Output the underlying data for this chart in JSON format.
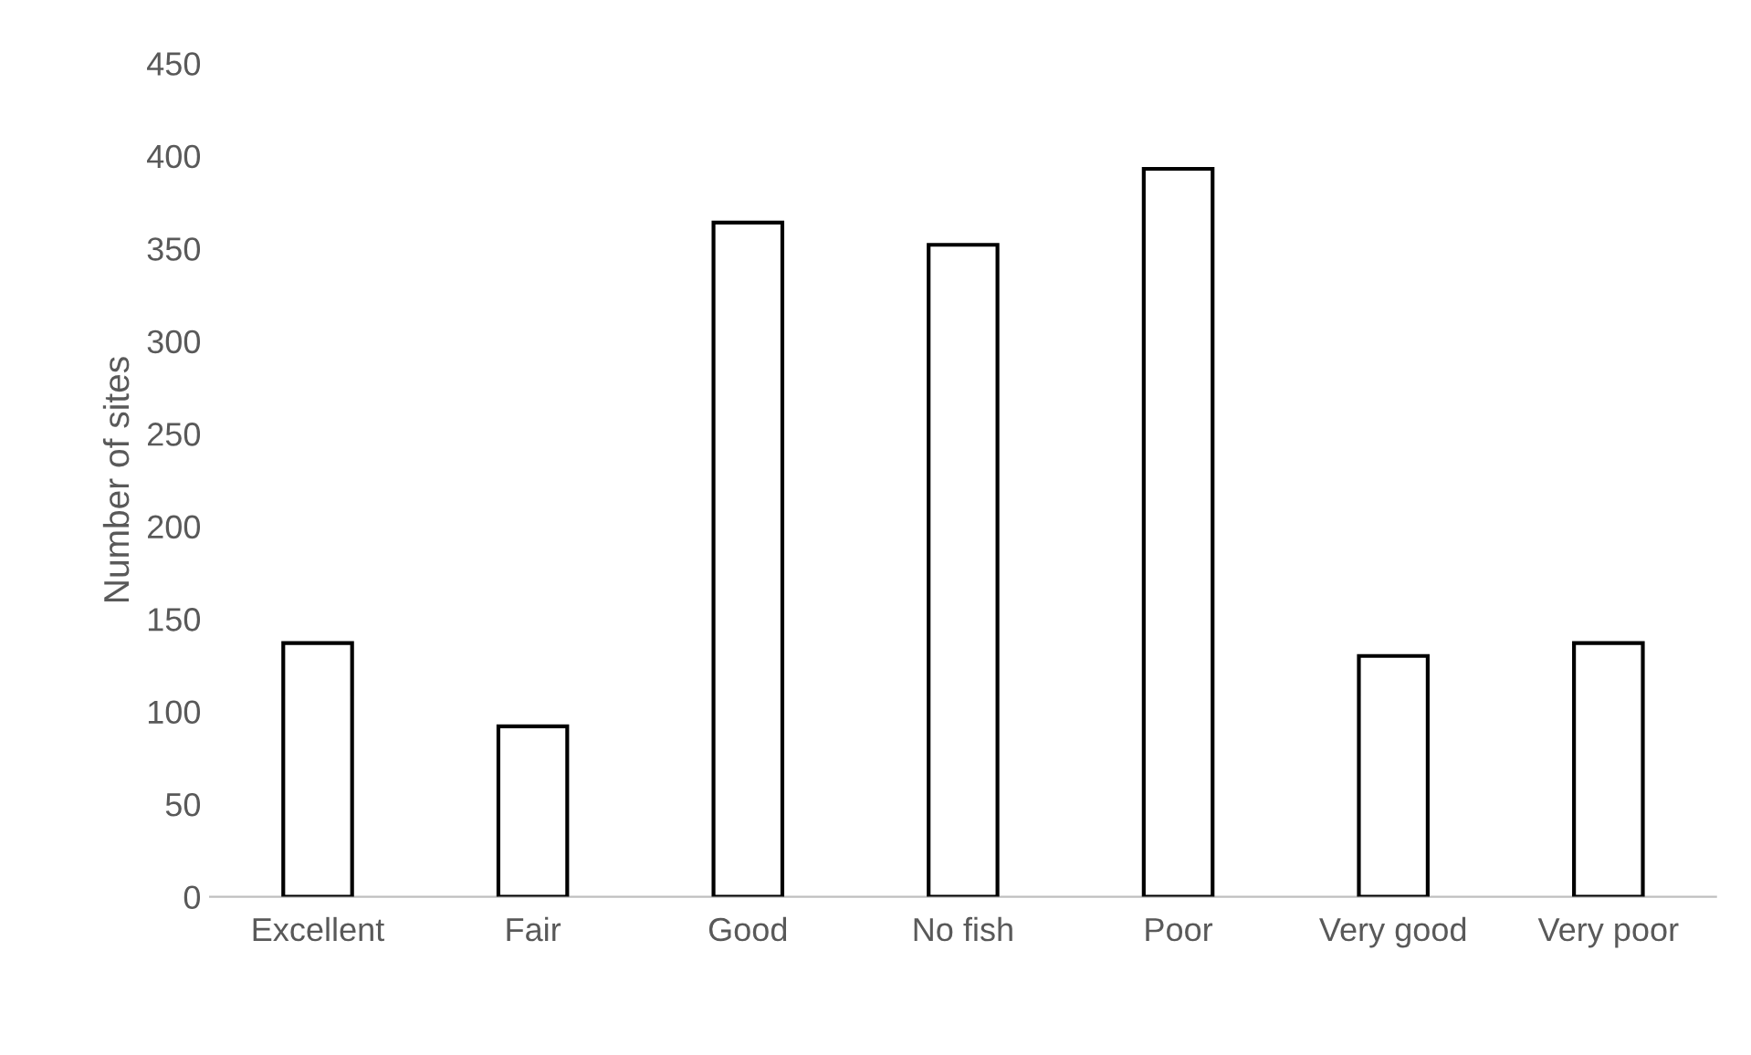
{
  "chart_data": {
    "type": "bar",
    "ylabel": "Number of sites",
    "categories": [
      "Excellent",
      "Fair",
      "Good",
      "No fish",
      "Poor",
      "Very good",
      "Very poor"
    ],
    "values": [
      137,
      92,
      364,
      352,
      393,
      130,
      137
    ],
    "color": "#ffffff",
    "ylim": [
      0,
      450
    ],
    "yticks": [
      0,
      50,
      100,
      150,
      200,
      250,
      300,
      350,
      400,
      450
    ],
    "grid": false,
    "legend": false
  }
}
